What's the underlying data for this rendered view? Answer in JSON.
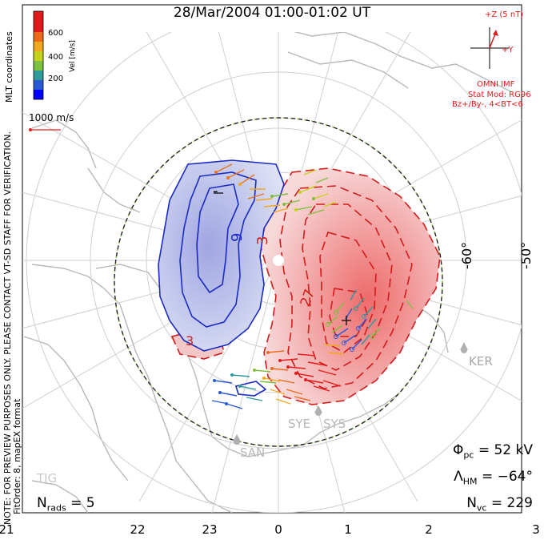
{
  "title": "28/Mar/2004 01:00-01:02 UT",
  "side_notes": {
    "note": "NOTE: FOR PREVIEW PURPOSES ONLY. PLEASE CONTACT VT-SD STAFF FOR VERIFICATION.",
    "fit": "FitOrder: 8, mapEX format",
    "coords": "MLT coordinates"
  },
  "colorbar": {
    "label": "Vel [m/s]",
    "ticks": [
      "600",
      "400",
      "200"
    ],
    "colors": [
      "#0000ff",
      "#2a59d6",
      "#2f9a9a",
      "#7ec03f",
      "#c6d21e",
      "#f0a820",
      "#ee6a1b",
      "#e31a1c"
    ]
  },
  "vector_scale": "1000 m/s",
  "imf": {
    "z_label": "+Z (5 nT)",
    "y_label": "+Y",
    "source": "OMNI IMF",
    "model": "Stat Mod: RG96",
    "condition": "Bz+/By-, 4<BT<6"
  },
  "latitude_labels": [
    "-60°",
    "-50°"
  ],
  "contour_labels": [
    "-",
    "9",
    "3",
    "27",
    "3",
    "+"
  ],
  "stations": [
    "KER",
    "SYS",
    "SYE",
    "SAN",
    "TIG"
  ],
  "stats": {
    "phi_pc_value": "52 kV",
    "lambda_hm_value": "−64°",
    "n_vc_value": "229",
    "n_rads_value": "5"
  },
  "mlt_ticks": [
    "21",
    "22",
    "23",
    "0",
    "1",
    "2",
    "3"
  ]
}
